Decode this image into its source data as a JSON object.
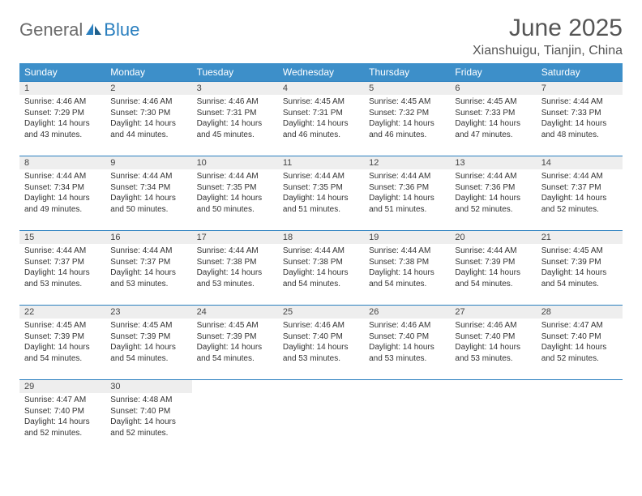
{
  "brand": {
    "part1": "General",
    "part2": "Blue"
  },
  "title": "June 2025",
  "location": "Xianshuigu, Tianjin, China",
  "colors": {
    "header_bg": "#3d8fc9",
    "rule": "#2a7fbf",
    "daynum_bg": "#eeeeee"
  },
  "weekdays": [
    "Sunday",
    "Monday",
    "Tuesday",
    "Wednesday",
    "Thursday",
    "Friday",
    "Saturday"
  ],
  "weeks": [
    [
      {
        "n": "1",
        "sr": "4:46 AM",
        "ss": "7:29 PM",
        "dl": "14 hours and 43 minutes."
      },
      {
        "n": "2",
        "sr": "4:46 AM",
        "ss": "7:30 PM",
        "dl": "14 hours and 44 minutes."
      },
      {
        "n": "3",
        "sr": "4:46 AM",
        "ss": "7:31 PM",
        "dl": "14 hours and 45 minutes."
      },
      {
        "n": "4",
        "sr": "4:45 AM",
        "ss": "7:31 PM",
        "dl": "14 hours and 46 minutes."
      },
      {
        "n": "5",
        "sr": "4:45 AM",
        "ss": "7:32 PM",
        "dl": "14 hours and 46 minutes."
      },
      {
        "n": "6",
        "sr": "4:45 AM",
        "ss": "7:33 PM",
        "dl": "14 hours and 47 minutes."
      },
      {
        "n": "7",
        "sr": "4:44 AM",
        "ss": "7:33 PM",
        "dl": "14 hours and 48 minutes."
      }
    ],
    [
      {
        "n": "8",
        "sr": "4:44 AM",
        "ss": "7:34 PM",
        "dl": "14 hours and 49 minutes."
      },
      {
        "n": "9",
        "sr": "4:44 AM",
        "ss": "7:34 PM",
        "dl": "14 hours and 50 minutes."
      },
      {
        "n": "10",
        "sr": "4:44 AM",
        "ss": "7:35 PM",
        "dl": "14 hours and 50 minutes."
      },
      {
        "n": "11",
        "sr": "4:44 AM",
        "ss": "7:35 PM",
        "dl": "14 hours and 51 minutes."
      },
      {
        "n": "12",
        "sr": "4:44 AM",
        "ss": "7:36 PM",
        "dl": "14 hours and 51 minutes."
      },
      {
        "n": "13",
        "sr": "4:44 AM",
        "ss": "7:36 PM",
        "dl": "14 hours and 52 minutes."
      },
      {
        "n": "14",
        "sr": "4:44 AM",
        "ss": "7:37 PM",
        "dl": "14 hours and 52 minutes."
      }
    ],
    [
      {
        "n": "15",
        "sr": "4:44 AM",
        "ss": "7:37 PM",
        "dl": "14 hours and 53 minutes."
      },
      {
        "n": "16",
        "sr": "4:44 AM",
        "ss": "7:37 PM",
        "dl": "14 hours and 53 minutes."
      },
      {
        "n": "17",
        "sr": "4:44 AM",
        "ss": "7:38 PM",
        "dl": "14 hours and 53 minutes."
      },
      {
        "n": "18",
        "sr": "4:44 AM",
        "ss": "7:38 PM",
        "dl": "14 hours and 54 minutes."
      },
      {
        "n": "19",
        "sr": "4:44 AM",
        "ss": "7:38 PM",
        "dl": "14 hours and 54 minutes."
      },
      {
        "n": "20",
        "sr": "4:44 AM",
        "ss": "7:39 PM",
        "dl": "14 hours and 54 minutes."
      },
      {
        "n": "21",
        "sr": "4:45 AM",
        "ss": "7:39 PM",
        "dl": "14 hours and 54 minutes."
      }
    ],
    [
      {
        "n": "22",
        "sr": "4:45 AM",
        "ss": "7:39 PM",
        "dl": "14 hours and 54 minutes."
      },
      {
        "n": "23",
        "sr": "4:45 AM",
        "ss": "7:39 PM",
        "dl": "14 hours and 54 minutes."
      },
      {
        "n": "24",
        "sr": "4:45 AM",
        "ss": "7:39 PM",
        "dl": "14 hours and 54 minutes."
      },
      {
        "n": "25",
        "sr": "4:46 AM",
        "ss": "7:40 PM",
        "dl": "14 hours and 53 minutes."
      },
      {
        "n": "26",
        "sr": "4:46 AM",
        "ss": "7:40 PM",
        "dl": "14 hours and 53 minutes."
      },
      {
        "n": "27",
        "sr": "4:46 AM",
        "ss": "7:40 PM",
        "dl": "14 hours and 53 minutes."
      },
      {
        "n": "28",
        "sr": "4:47 AM",
        "ss": "7:40 PM",
        "dl": "14 hours and 52 minutes."
      }
    ],
    [
      {
        "n": "29",
        "sr": "4:47 AM",
        "ss": "7:40 PM",
        "dl": "14 hours and 52 minutes."
      },
      {
        "n": "30",
        "sr": "4:48 AM",
        "ss": "7:40 PM",
        "dl": "14 hours and 52 minutes."
      },
      null,
      null,
      null,
      null,
      null
    ]
  ],
  "labels": {
    "sunrise": "Sunrise:",
    "sunset": "Sunset:",
    "daylight": "Daylight:"
  }
}
